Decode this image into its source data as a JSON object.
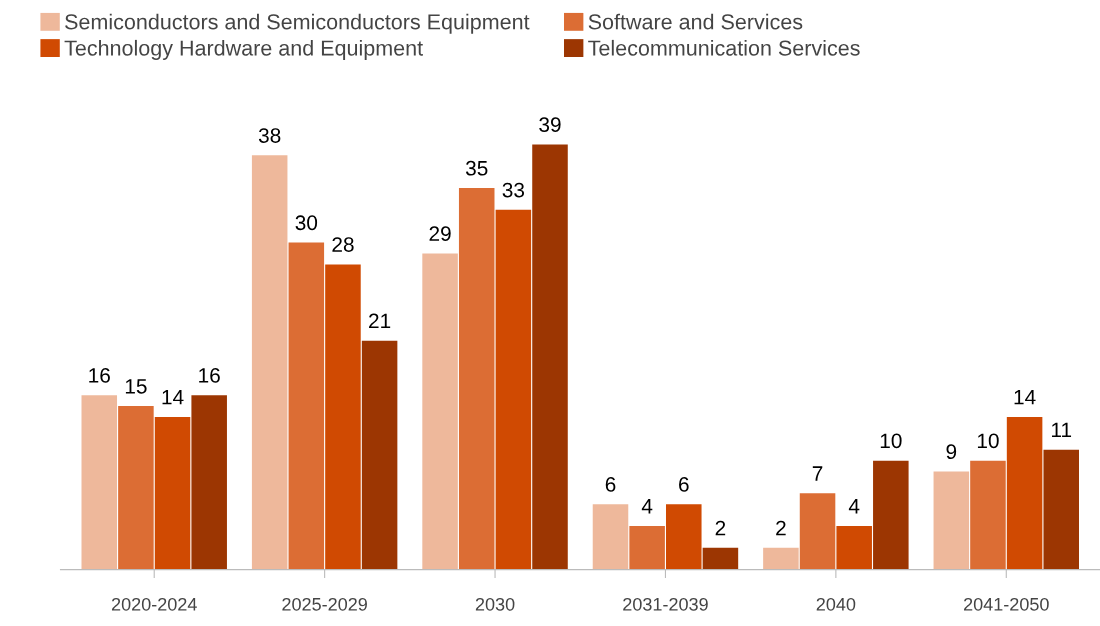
{
  "chart_data": {
    "type": "bar",
    "categories": [
      "2020-2024",
      "2025-2029",
      "2030",
      "2031-2039",
      "2040",
      "2041-2050"
    ],
    "series": [
      {
        "name": "Semiconductors and Semiconductors Equipment",
        "color": "#eeb89b",
        "values": [
          16,
          38,
          29,
          6,
          2,
          9
        ]
      },
      {
        "name": "Software and Services",
        "color": "#dc6d34",
        "values": [
          15,
          30,
          35,
          4,
          7,
          10
        ]
      },
      {
        "name": "Technology Hardware and Equipment",
        "color": "#d04a02",
        "values": [
          14,
          28,
          33,
          6,
          4,
          14
        ]
      },
      {
        "name": "Telecommunication Services",
        "color": "#9c3602",
        "values": [
          16,
          21,
          39,
          2,
          10,
          11
        ]
      }
    ],
    "data_labels": true,
    "legend": "top left",
    "grid": false,
    "tick_labels": "x"
  }
}
